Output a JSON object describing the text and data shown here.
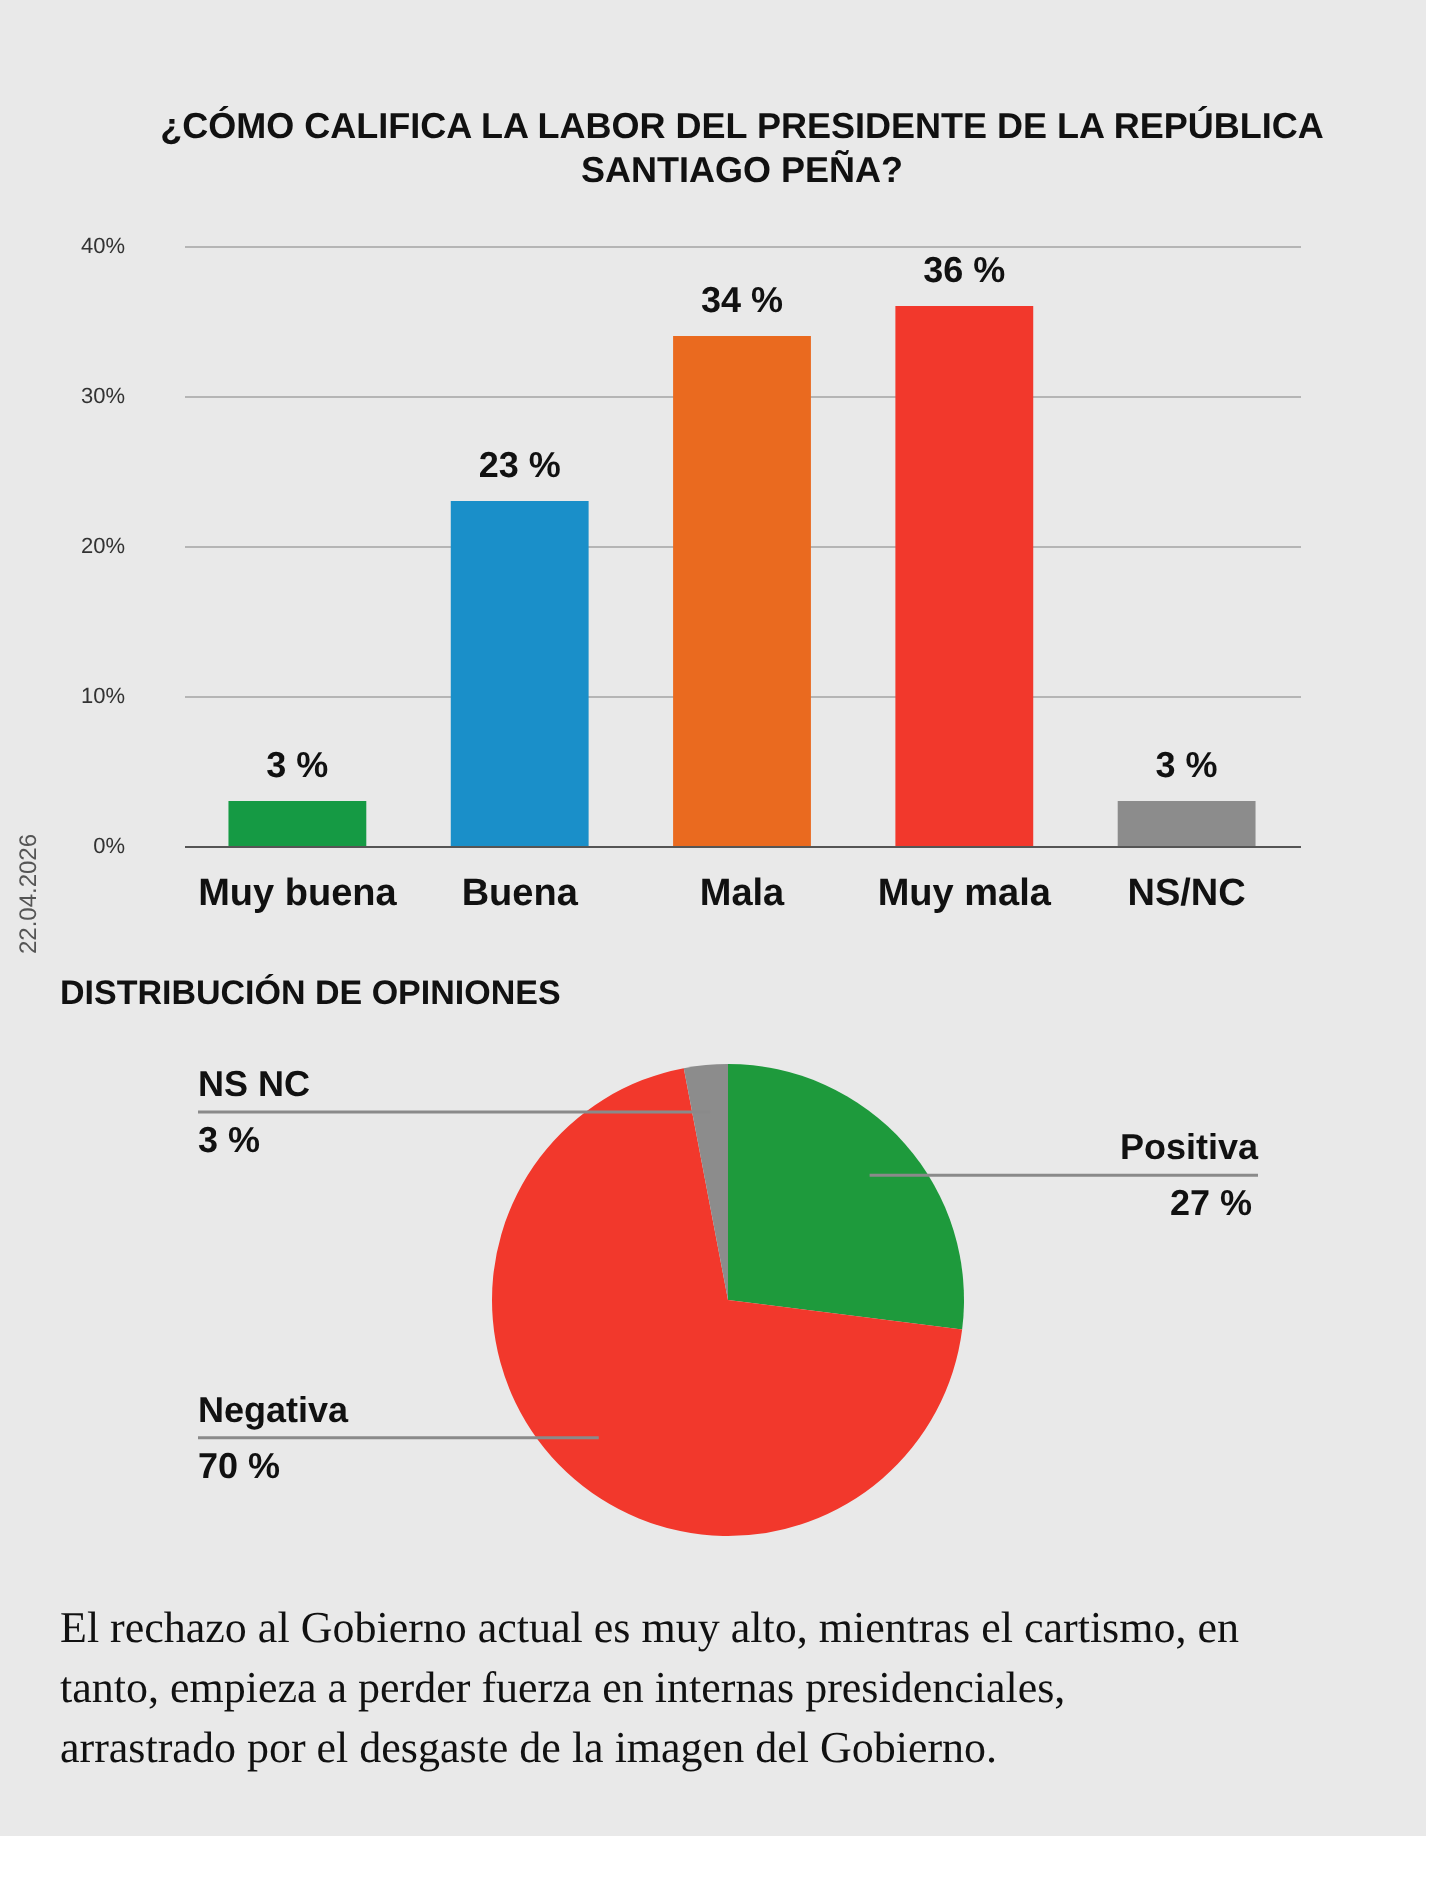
{
  "chart_data": [
    {
      "type": "bar",
      "title": "¿CÓMO CALIFICA LA LABOR DEL PRESIDENTE DE LA REPÚBLICA SANTIAGO PEÑA?",
      "categories": [
        "Muy buena",
        "Buena",
        "Mala",
        "Muy mala",
        "NS/NC"
      ],
      "values": [
        3,
        23,
        34,
        36,
        3
      ],
      "colors": [
        "#159a44",
        "#1a8fc9",
        "#ea6a1f",
        "#f2382c",
        "#8c8c8c"
      ],
      "value_labels": [
        "3 %",
        "23 %",
        "34 %",
        "36 %",
        "3 %"
      ],
      "ylim": [
        0,
        40
      ],
      "yticks": [
        {
          "value": 0,
          "label": "0%"
        },
        {
          "value": 10,
          "label": "10%"
        },
        {
          "value": 20,
          "label": "20%"
        },
        {
          "value": 30,
          "label": "30%"
        },
        {
          "value": 40,
          "label": "40%"
        }
      ],
      "grid": "y",
      "annotations": [
        "22.04.2026"
      ]
    },
    {
      "type": "pie",
      "title": "DISTRIBUCIÓN DE OPINIONES",
      "categories": [
        "Positiva",
        "Negativa",
        "NS NC"
      ],
      "values": [
        27,
        70,
        3
      ],
      "colors": [
        "#1e9a3c",
        "#f2382c",
        "#8c8c8c"
      ],
      "value_labels": [
        "27 %",
        "70 %",
        "3 %"
      ],
      "annotations": [
        "El rechazo al Gobierno actual es muy alto, mientras el cartismo, en tanto, empieza a perder fuerza en internas presidenciales, arrastrado por el desgaste de la imagen del Gobierno."
      ]
    }
  ]
}
